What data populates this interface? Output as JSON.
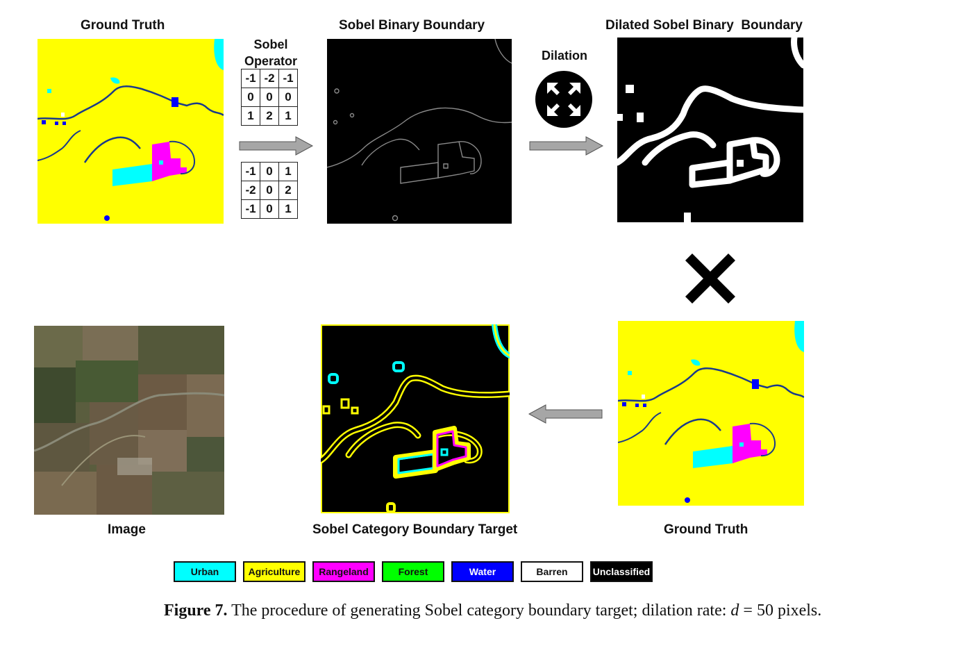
{
  "titles": {
    "ground_truth_top": "Ground Truth",
    "sobel_operator": "Sobel\nOperator",
    "sobel_binary": "Sobel Binary Boundary",
    "dilation": "Dilation",
    "dilated": "Dilated Sobel Binary  Boundary",
    "image": "Image",
    "target": "Sobel Category Boundary Target",
    "ground_truth_bottom": "Ground Truth"
  },
  "kernels": {
    "gx": [
      [
        "-1",
        "-2",
        "-1"
      ],
      [
        "0",
        "0",
        "0"
      ],
      [
        "1",
        "2",
        "1"
      ]
    ],
    "gy": [
      [
        "-1",
        "0",
        "1"
      ],
      [
        "-2",
        "0",
        "2"
      ],
      [
        "-1",
        "0",
        "1"
      ]
    ]
  },
  "legend": [
    {
      "label": "Urban",
      "color": "#00ffff",
      "text_color": "#111111"
    },
    {
      "label": "Agriculture",
      "color": "#ffff00",
      "text_color": "#111111"
    },
    {
      "label": "Rangeland",
      "color": "#ff00ff",
      "text_color": "#111111"
    },
    {
      "label": "Forest",
      "color": "#00ff00",
      "text_color": "#111111"
    },
    {
      "label": "Water",
      "color": "#0000ff",
      "text_color": "#ffffff"
    },
    {
      "label": "Barren",
      "color": "#ffffff",
      "text_color": "#111111"
    },
    {
      "label": "Unclassified",
      "color": "#000000",
      "text_color": "#ffffff"
    }
  ],
  "caption": {
    "label": "Figure 7.",
    "text_before": " The procedure of generating Sobel category boundary target; dilation rate: ",
    "var": "d",
    "text_after": " = 50 pixels."
  },
  "colors": {
    "agriculture": "#ffff00",
    "urban": "#00ffff",
    "rangeland": "#ff00ff",
    "water": "#0000ff",
    "black": "#000000",
    "arrow": "#a6a6a6"
  },
  "icons": {
    "dilation": "expand-arrows-icon",
    "multiply": "multiply-cross-icon"
  }
}
